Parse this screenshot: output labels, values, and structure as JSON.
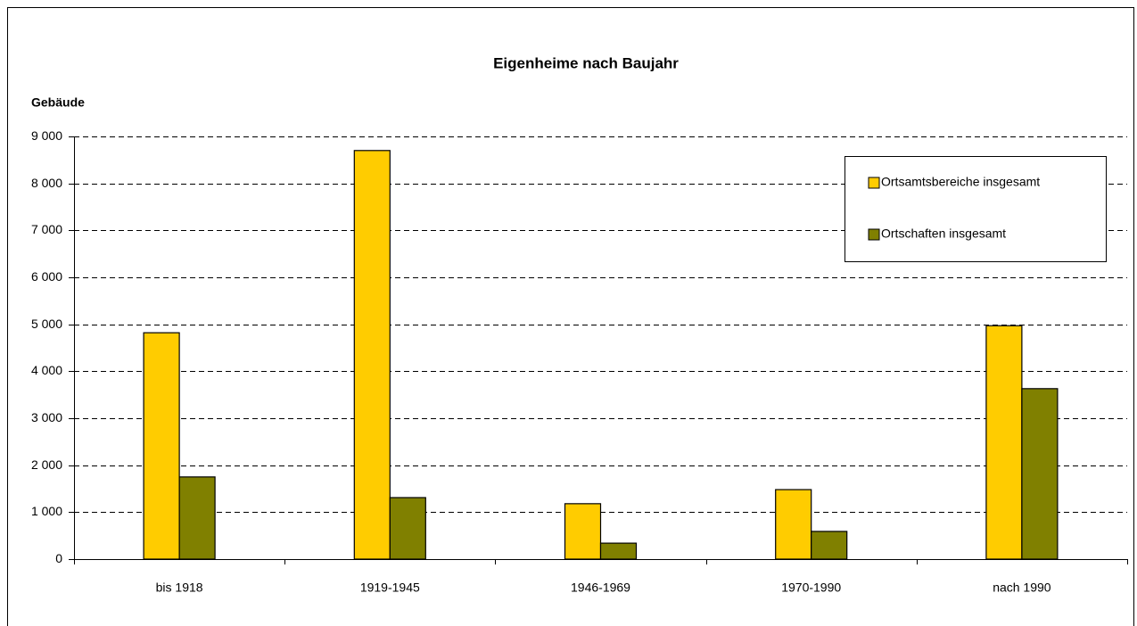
{
  "chart_data": {
    "type": "bar",
    "title": "Eigenheime nach Baujahr",
    "y_label": "Gebäude",
    "categories": [
      "bis 1918",
      "1919-1945",
      "1946-1969",
      "1970-1990",
      "nach 1990"
    ],
    "series": [
      {
        "name": "Ortsamtsbereiche insgesamt",
        "color": "#ffcc00",
        "values": [
          4820,
          8700,
          1180,
          1480,
          4970
        ]
      },
      {
        "name": "Ortschaften insgesamt",
        "color": "#808000",
        "values": [
          1750,
          1310,
          340,
          590,
          3630
        ]
      }
    ],
    "ylim": [
      0,
      9000
    ],
    "yticks": [
      0,
      {
        "value": 1000,
        "label": "1 000"
      },
      {
        "value": 2000,
        "label": "2 000"
      },
      {
        "value": 3000,
        "label": "3 000"
      },
      {
        "value": 4000,
        "label": "4 000"
      },
      {
        "value": 5000,
        "label": "5 000"
      },
      {
        "value": 6000,
        "label": "6 000"
      },
      {
        "value": 7000,
        "label": "7 000"
      },
      {
        "value": 8000,
        "label": "8 000"
      },
      {
        "value": 9000,
        "label": "9 000"
      }
    ],
    "grid": true,
    "legend": "upper right"
  }
}
